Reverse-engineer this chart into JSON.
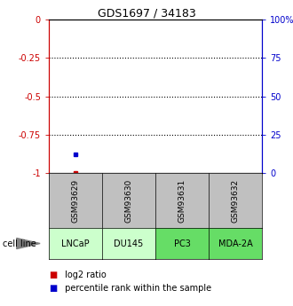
{
  "title": "GDS1697 / 34183",
  "samples": [
    "GSM93629",
    "GSM93630",
    "GSM93631",
    "GSM93632"
  ],
  "cell_lines": [
    "LNCaP",
    "DU145",
    "PC3",
    "MDA-2A"
  ],
  "cell_line_colors": [
    "#ccffcc",
    "#ccffcc",
    "#66dd66",
    "#66dd66"
  ],
  "gsm_box_color": "#c0c0c0",
  "log2_ratio_x": [
    0
  ],
  "log2_ratio_y": [
    -1.0
  ],
  "percentile_rank_x": [
    0
  ],
  "percentile_rank_y": [
    -0.88
  ],
  "ylim": [
    -1.0,
    0.0
  ],
  "left_yticks": [
    0,
    -0.25,
    -0.5,
    -0.75,
    -1.0
  ],
  "left_yticklabels": [
    "0",
    "-0.25",
    "-0.5",
    "-0.75",
    "-1"
  ],
  "right_yticks": [
    0,
    -0.25,
    -0.5,
    -0.75,
    -1.0
  ],
  "right_yticklabels": [
    "100%",
    "75",
    "50",
    "25",
    "0"
  ],
  "dotted_lines": [
    -0.25,
    -0.5,
    -0.75
  ],
  "left_tick_color": "#cc0000",
  "right_tick_color": "#0000cc",
  "legend_log2_color": "#cc0000",
  "legend_percentile_color": "#0000cc",
  "cell_line_label": "cell line",
  "legend_log2_label": " log2 ratio",
  "legend_percentile_label": " percentile rank within the sample",
  "title_fontsize": 9,
  "tick_fontsize": 7,
  "label_fontsize": 7,
  "gsm_fontsize": 6.5,
  "cell_fontsize": 7,
  "legend_fontsize": 7
}
